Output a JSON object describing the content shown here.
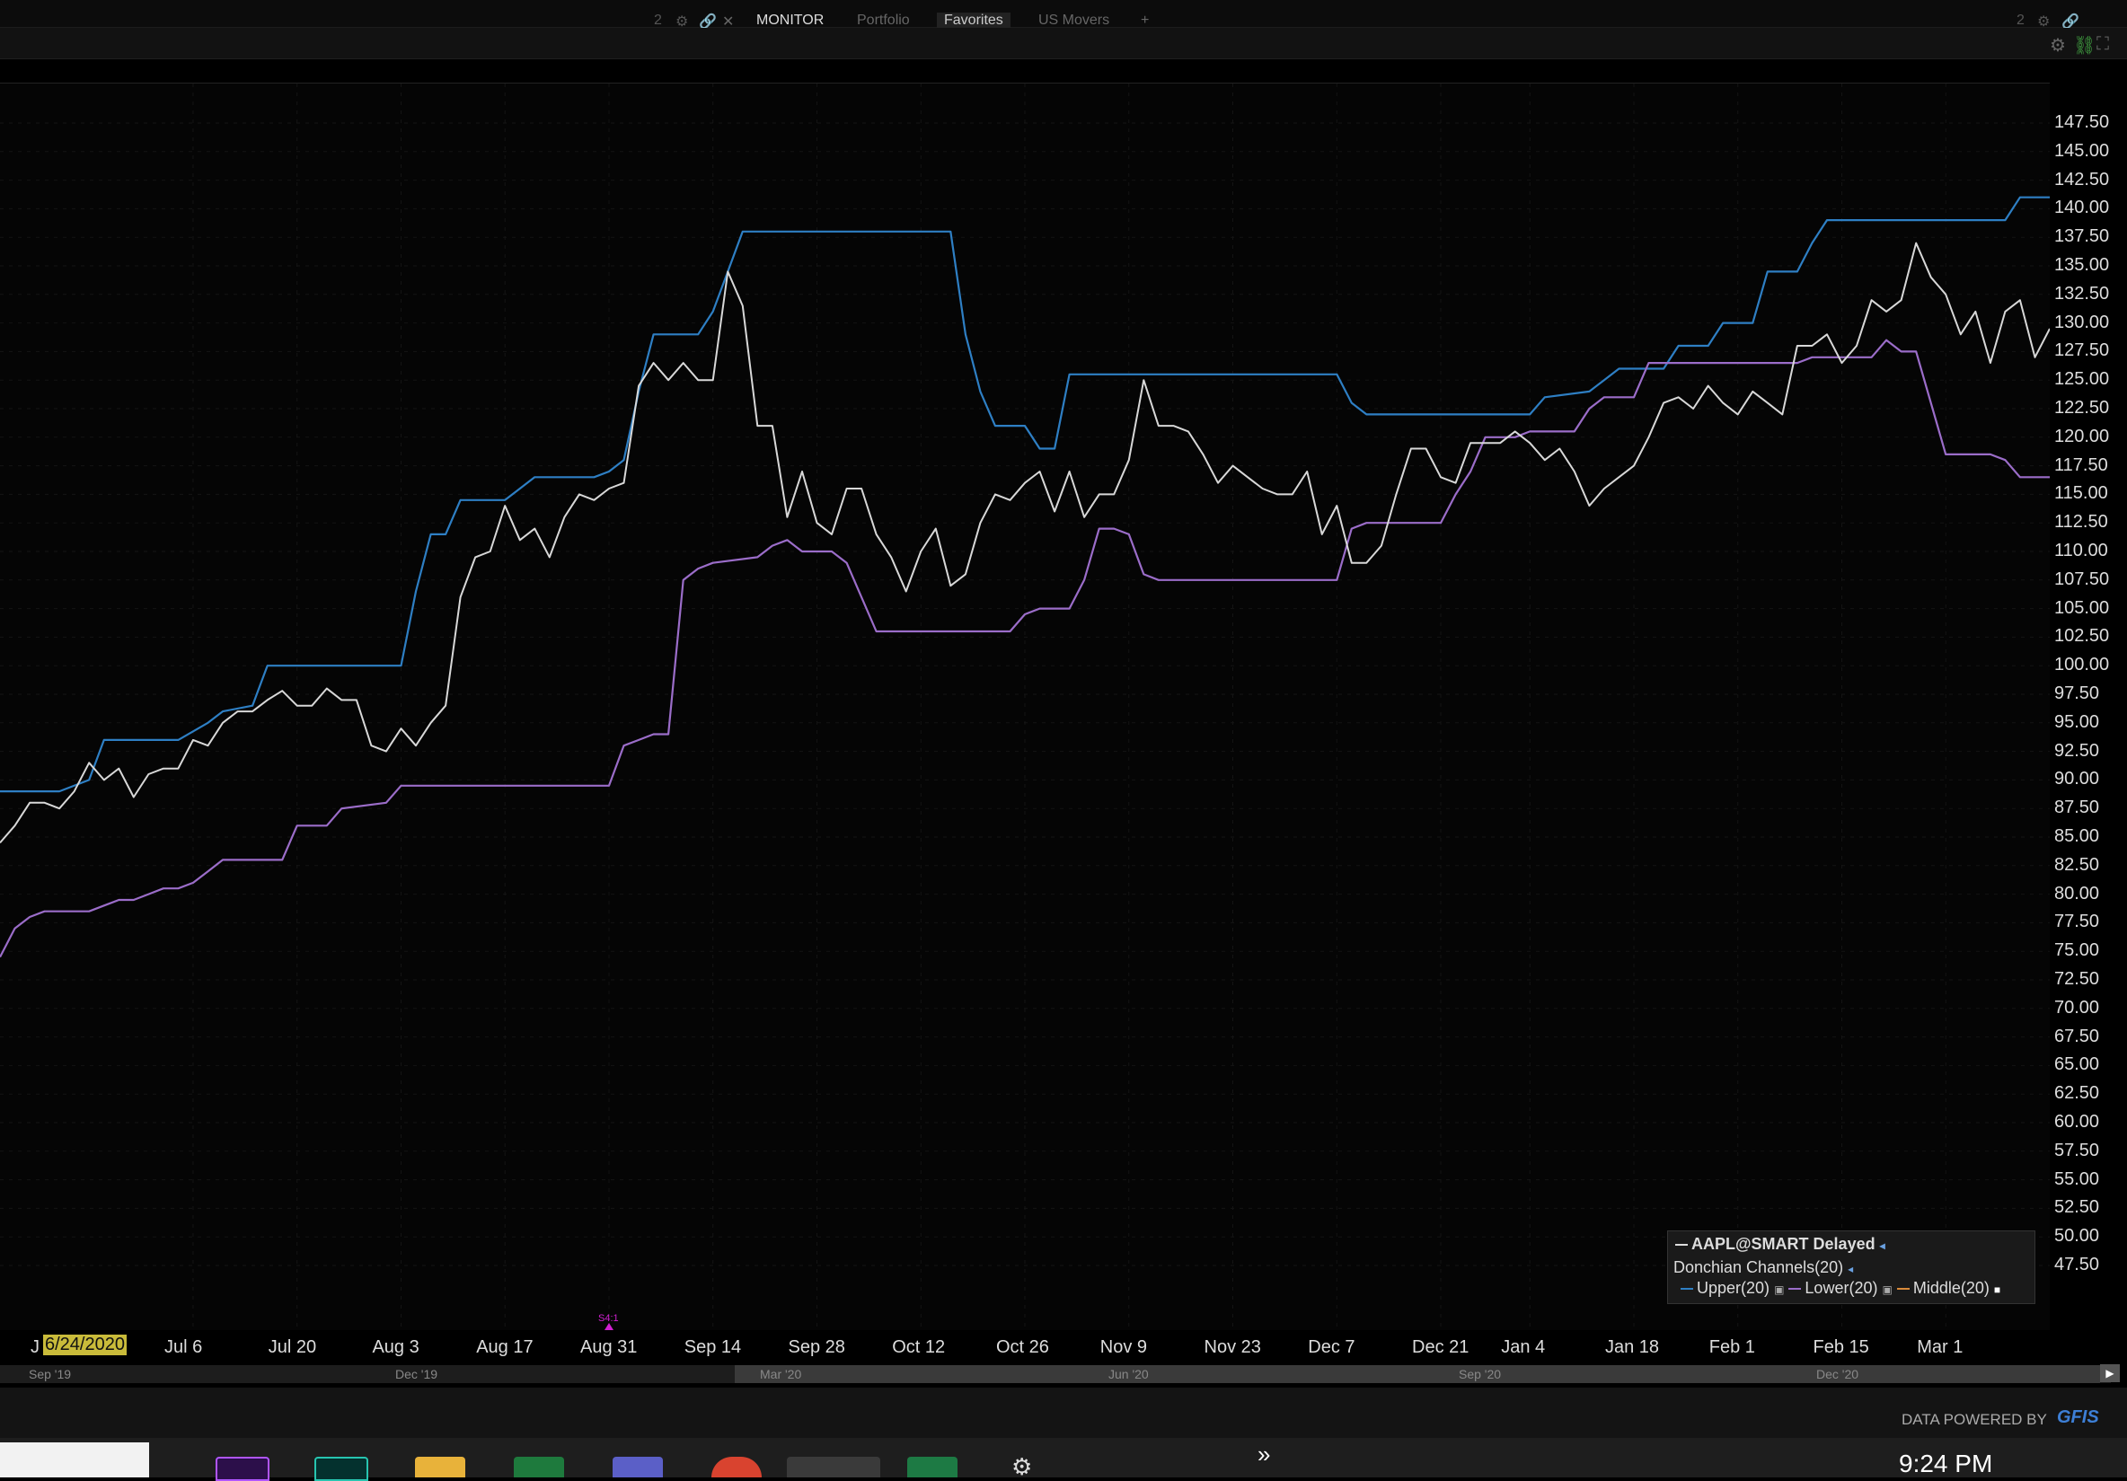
{
  "tabs": [
    {
      "label": "MONITOR",
      "state": "active"
    },
    {
      "label": "Portfolio",
      "state": "dim"
    },
    {
      "label": "Favorites",
      "state": "selected"
    },
    {
      "label": "US Movers",
      "state": "dim"
    },
    {
      "label": "+",
      "state": "dim"
    }
  ],
  "cursor_date": "6/24/2020",
  "event_marker": "S4:1",
  "legend": {
    "title": "AAPL@SMART Delayed",
    "study": "Donchian Channels(20)",
    "upper": "Upper(20)",
    "lower": "Lower(20)",
    "middle": "Middle(20)"
  },
  "navigator_labels": [
    "Sep '19",
    "Dec '19",
    "Mar '20",
    "Jun '20",
    "Sep '20",
    "Dec '20"
  ],
  "footer": {
    "powered": "DATA POWERED BY",
    "brand": "GFIS"
  },
  "clock": "9:24 PM",
  "colors": {
    "price": "#d8d8d8",
    "upper": "#2e7fc4",
    "lower": "#9b6dc9",
    "middle": "#d88a3a",
    "cursor_bg": "#c9bb3a"
  },
  "chart_data": {
    "type": "line",
    "title": "AAPL@SMART Delayed",
    "ylim": [
      46.0,
      150.0
    ],
    "y_ticks": [
      147.5,
      145,
      142.5,
      140,
      137.5,
      135,
      132.5,
      130,
      127.5,
      125,
      122.5,
      120,
      117.5,
      115,
      112.5,
      110,
      107.5,
      105,
      102.5,
      100,
      97.5,
      95,
      92.5,
      90,
      87.5,
      85,
      82.5,
      80,
      77.5,
      75,
      72.5,
      70,
      67.5,
      65,
      62.5,
      60,
      57.5,
      55,
      52.5,
      50,
      47.5
    ],
    "y_tick_labels": [
      "147.50",
      "145.00",
      "142.50",
      "140.00",
      "137.50",
      "135.00",
      "132.50",
      "130.00",
      "127.50",
      "125.00",
      "122.50",
      "120.00",
      "117.50",
      "115.00",
      "112.50",
      "110.00",
      "107.50",
      "105.00",
      "102.50",
      "100.00",
      "97.50",
      "95.00",
      "92.50",
      "90.00",
      "87.50",
      "85.00",
      "82.50",
      "80.00",
      "77.50",
      "75.00",
      "72.50",
      "70.00",
      "67.50",
      "65.00",
      "62.50",
      "60.00",
      "57.50",
      "55.00",
      "52.50",
      "50.00",
      "47.50"
    ],
    "x_ticks": [
      "Jul 6",
      "Jul 20",
      "Aug 3",
      "Aug 17",
      "Aug 31",
      "Sep 14",
      "Sep 28",
      "Oct 12",
      "Oct 26",
      "Nov 9",
      "Nov 23",
      "Dec 7",
      "Dec 21",
      "Jan 4",
      "Jan 18",
      "Feb 1",
      "Feb 15",
      "Mar 1"
    ],
    "x_tick_pos": [
      10,
      24,
      38,
      52,
      66,
      80,
      94,
      108,
      122,
      136,
      150,
      164,
      178,
      190,
      204,
      218,
      232,
      246
    ],
    "x_range": [
      -16,
      260
    ],
    "series": [
      {
        "name": "AAPL@SMART Delayed",
        "points": [
          [
            -16,
            84.5
          ],
          [
            -14,
            86
          ],
          [
            -12,
            88
          ],
          [
            -10,
            88
          ],
          [
            -8,
            87.5
          ],
          [
            -6,
            89
          ],
          [
            -4,
            91.5
          ],
          [
            -2,
            90
          ],
          [
            0,
            91
          ],
          [
            2,
            88.5
          ],
          [
            4,
            90.5
          ],
          [
            6,
            91
          ],
          [
            8,
            91
          ],
          [
            10,
            93.5
          ],
          [
            12,
            93
          ],
          [
            14,
            95
          ],
          [
            16,
            96
          ],
          [
            18,
            96
          ],
          [
            20,
            97
          ],
          [
            22,
            97.8
          ],
          [
            24,
            96.5
          ],
          [
            26,
            96.5
          ],
          [
            28,
            98
          ],
          [
            30,
            97
          ],
          [
            32,
            97
          ],
          [
            34,
            93
          ],
          [
            36,
            92.5
          ],
          [
            38,
            94.5
          ],
          [
            40,
            93
          ],
          [
            42,
            95
          ],
          [
            44,
            96.5
          ],
          [
            46,
            106
          ],
          [
            48,
            109.5
          ],
          [
            50,
            110
          ],
          [
            52,
            114
          ],
          [
            54,
            111
          ],
          [
            56,
            112
          ],
          [
            58,
            109.5
          ],
          [
            60,
            113
          ],
          [
            62,
            115
          ],
          [
            64,
            114.5
          ],
          [
            66,
            115.5
          ],
          [
            68,
            116
          ],
          [
            70,
            124.5
          ],
          [
            72,
            126.5
          ],
          [
            74,
            125
          ],
          [
            76,
            126.5
          ],
          [
            78,
            125
          ],
          [
            80,
            125
          ],
          [
            82,
            134.5
          ],
          [
            84,
            131.5
          ],
          [
            86,
            121
          ],
          [
            88,
            121
          ],
          [
            90,
            113
          ],
          [
            92,
            117
          ],
          [
            94,
            112.5
          ],
          [
            96,
            111.5
          ],
          [
            98,
            115.5
          ],
          [
            100,
            115.5
          ],
          [
            102,
            111.5
          ],
          [
            104,
            109.5
          ],
          [
            106,
            106.5
          ],
          [
            108,
            110
          ],
          [
            110,
            112
          ],
          [
            112,
            107
          ],
          [
            114,
            108
          ],
          [
            116,
            112.5
          ],
          [
            118,
            115
          ],
          [
            120,
            114.5
          ],
          [
            122,
            116
          ],
          [
            124,
            117
          ],
          [
            126,
            113.5
          ],
          [
            128,
            117
          ],
          [
            130,
            113
          ],
          [
            132,
            115
          ],
          [
            134,
            115
          ],
          [
            136,
            118
          ],
          [
            138,
            125
          ],
          [
            140,
            121
          ],
          [
            142,
            121
          ],
          [
            144,
            120.5
          ],
          [
            146,
            118.5
          ],
          [
            148,
            116
          ],
          [
            150,
            117.5
          ],
          [
            152,
            116.5
          ],
          [
            154,
            115.5
          ],
          [
            156,
            115
          ],
          [
            158,
            115
          ],
          [
            160,
            117
          ],
          [
            162,
            111.5
          ],
          [
            164,
            114
          ],
          [
            166,
            109
          ],
          [
            168,
            109
          ],
          [
            170,
            110.5
          ],
          [
            172,
            115
          ],
          [
            174,
            119
          ],
          [
            176,
            119
          ],
          [
            178,
            116.5
          ],
          [
            180,
            116
          ],
          [
            182,
            119.5
          ],
          [
            184,
            119.5
          ],
          [
            186,
            119.5
          ],
          [
            188,
            120.5
          ],
          [
            190,
            119.5
          ],
          [
            192,
            118
          ],
          [
            194,
            119
          ],
          [
            196,
            117
          ],
          [
            198,
            114
          ],
          [
            200,
            115.5
          ],
          [
            202,
            116.5
          ],
          [
            204,
            117.5
          ],
          [
            206,
            120
          ],
          [
            208,
            123
          ],
          [
            210,
            123.5
          ],
          [
            212,
            122.5
          ],
          [
            214,
            124.5
          ],
          [
            216,
            123
          ],
          [
            218,
            122
          ],
          [
            220,
            124
          ],
          [
            222,
            123
          ],
          [
            224,
            122
          ],
          [
            226,
            128
          ],
          [
            228,
            128
          ],
          [
            230,
            129
          ],
          [
            232,
            126.5
          ],
          [
            234,
            128
          ],
          [
            236,
            132
          ],
          [
            238,
            131
          ],
          [
            240,
            132
          ],
          [
            242,
            137
          ],
          [
            244,
            134
          ],
          [
            246,
            132.5
          ],
          [
            248,
            129
          ],
          [
            250,
            131
          ],
          [
            252,
            126.5
          ],
          [
            254,
            131
          ],
          [
            256,
            132
          ],
          [
            258,
            127
          ],
          [
            260,
            129.5
          ]
        ]
      },
      {
        "name": "Upper(20)",
        "points": [
          [
            -16,
            89
          ],
          [
            -8,
            89
          ],
          [
            -4,
            90
          ],
          [
            -2,
            93.5
          ],
          [
            8,
            93.5
          ],
          [
            12,
            95
          ],
          [
            14,
            96
          ],
          [
            18,
            96.5
          ],
          [
            20,
            100
          ],
          [
            38,
            100
          ],
          [
            40,
            106.5
          ],
          [
            42,
            111.5
          ],
          [
            44,
            111.5
          ],
          [
            46,
            114.5
          ],
          [
            52,
            114.5
          ],
          [
            54,
            115.5
          ],
          [
            56,
            116.5
          ],
          [
            64,
            116.5
          ],
          [
            66,
            117
          ],
          [
            68,
            118
          ],
          [
            70,
            124
          ],
          [
            72,
            129
          ],
          [
            78,
            129
          ],
          [
            80,
            131
          ],
          [
            82,
            134.5
          ],
          [
            84,
            138
          ],
          [
            112,
            138
          ],
          [
            114,
            129
          ],
          [
            116,
            124
          ],
          [
            118,
            121
          ],
          [
            122,
            121
          ],
          [
            124,
            119
          ],
          [
            126,
            119
          ],
          [
            128,
            125.5
          ],
          [
            164,
            125.5
          ],
          [
            166,
            123
          ],
          [
            168,
            122
          ],
          [
            190,
            122
          ],
          [
            192,
            123.5
          ],
          [
            198,
            124
          ],
          [
            200,
            125
          ],
          [
            202,
            126
          ],
          [
            208,
            126
          ],
          [
            210,
            128
          ],
          [
            214,
            128
          ],
          [
            216,
            130
          ],
          [
            220,
            130
          ],
          [
            222,
            134.5
          ],
          [
            226,
            134.5
          ],
          [
            228,
            137
          ],
          [
            230,
            139
          ],
          [
            254,
            139
          ],
          [
            256,
            141
          ],
          [
            260,
            141
          ]
        ]
      },
      {
        "name": "Lower(20)",
        "points": [
          [
            -16,
            74.5
          ],
          [
            -14,
            77
          ],
          [
            -12,
            78
          ],
          [
            -10,
            78.5
          ],
          [
            -4,
            78.5
          ],
          [
            -2,
            79
          ],
          [
            0,
            79.5
          ],
          [
            2,
            79.5
          ],
          [
            4,
            80
          ],
          [
            6,
            80.5
          ],
          [
            8,
            80.5
          ],
          [
            10,
            81
          ],
          [
            12,
            82
          ],
          [
            14,
            83
          ],
          [
            22,
            83
          ],
          [
            24,
            86
          ],
          [
            28,
            86
          ],
          [
            30,
            87.5
          ],
          [
            36,
            88
          ],
          [
            38,
            89.5
          ],
          [
            66,
            89.5
          ],
          [
            68,
            93
          ],
          [
            70,
            93.5
          ],
          [
            72,
            94
          ],
          [
            74,
            94
          ],
          [
            76,
            107.5
          ],
          [
            78,
            108.5
          ],
          [
            80,
            109
          ],
          [
            86,
            109.5
          ],
          [
            88,
            110.5
          ],
          [
            90,
            111
          ],
          [
            92,
            110
          ],
          [
            96,
            110
          ],
          [
            98,
            109
          ],
          [
            100,
            106
          ],
          [
            102,
            103
          ],
          [
            104,
            103
          ],
          [
            120,
            103
          ],
          [
            122,
            104.5
          ],
          [
            124,
            105
          ],
          [
            128,
            105
          ],
          [
            130,
            107.5
          ],
          [
            132,
            112
          ],
          [
            134,
            112
          ],
          [
            136,
            111.5
          ],
          [
            138,
            108
          ],
          [
            140,
            107.5
          ],
          [
            164,
            107.5
          ],
          [
            166,
            112
          ],
          [
            168,
            112.5
          ],
          [
            178,
            112.5
          ],
          [
            180,
            115
          ],
          [
            182,
            117
          ],
          [
            184,
            120
          ],
          [
            188,
            120
          ],
          [
            190,
            120.5
          ],
          [
            196,
            120.5
          ],
          [
            198,
            122.5
          ],
          [
            200,
            123.5
          ],
          [
            204,
            123.5
          ],
          [
            206,
            126.5
          ],
          [
            226,
            126.5
          ],
          [
            228,
            127
          ],
          [
            236,
            127
          ],
          [
            238,
            128.5
          ],
          [
            240,
            127.5
          ],
          [
            242,
            127.5
          ],
          [
            246,
            118.5
          ],
          [
            252,
            118.5
          ],
          [
            254,
            118
          ],
          [
            256,
            116.5
          ],
          [
            260,
            116.5
          ]
        ]
      }
    ]
  }
}
